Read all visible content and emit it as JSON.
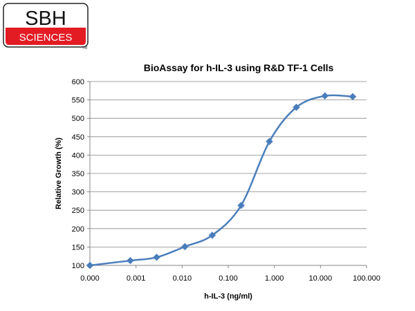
{
  "logo": {
    "line1": "SBH",
    "line2": "SCIENCES",
    "tm": "TM",
    "accent_color": "#e31b23"
  },
  "chart_data": {
    "type": "line",
    "title": "BioAssay for h-IL-3 using R&D TF-1 Cells",
    "xlabel": "h-IL-3 (ng/ml)",
    "ylabel": "Relative Growth (%)",
    "x_scale": "log",
    "x_tick_labels": [
      "0.000",
      "0.001",
      "0.010",
      "0.100",
      "1.000",
      "10.000",
      "100.000"
    ],
    "x_tick_values": [
      0.0001,
      0.001,
      0.01,
      0.1,
      1,
      10,
      100
    ],
    "y_ticks": [
      100,
      150,
      200,
      250,
      300,
      350,
      400,
      450,
      500,
      550,
      600
    ],
    "ylim": [
      100,
      600
    ],
    "grid": "horizontal",
    "series": [
      {
        "color": "#4a7ebb",
        "marker": "diamond",
        "x": [
          0.0001,
          0.00075,
          0.0028,
          0.0115,
          0.045,
          0.19,
          0.78,
          3.0,
          12.5,
          50
        ],
        "y": [
          100,
          113,
          122,
          151,
          182,
          263,
          437,
          530,
          561,
          559
        ]
      }
    ]
  }
}
